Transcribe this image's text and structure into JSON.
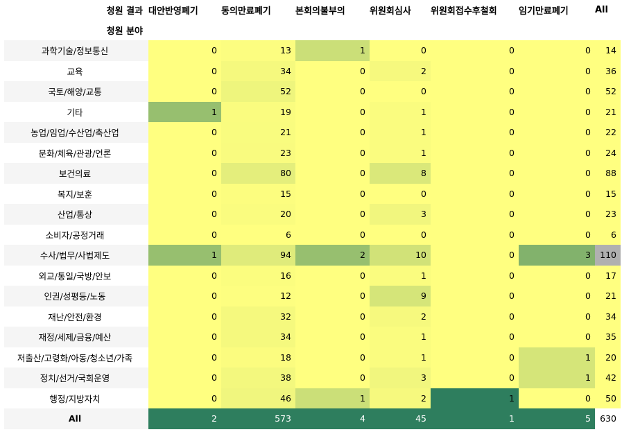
{
  "header": {
    "corner_row1": "청원 결과",
    "corner_row2": "청원 분야",
    "columns": [
      "대안반영폐기",
      "동의만료폐기",
      "본회의불부의",
      "위원회심사",
      "위원회접수후철회",
      "임기만료폐기",
      "All"
    ]
  },
  "rows": [
    {
      "label": "과학기술/정보통신",
      "values": [
        0,
        13,
        1,
        0,
        0,
        0,
        14
      ]
    },
    {
      "label": "교육",
      "values": [
        0,
        34,
        0,
        2,
        0,
        0,
        36
      ]
    },
    {
      "label": "국토/해양/교통",
      "values": [
        0,
        52,
        0,
        0,
        0,
        0,
        52
      ]
    },
    {
      "label": "기타",
      "values": [
        1,
        19,
        0,
        1,
        0,
        0,
        21
      ]
    },
    {
      "label": "농업/임업/수산업/축산업",
      "values": [
        0,
        21,
        0,
        1,
        0,
        0,
        22
      ]
    },
    {
      "label": "문화/체육/관광/언론",
      "values": [
        0,
        23,
        0,
        1,
        0,
        0,
        24
      ]
    },
    {
      "label": "보건의료",
      "values": [
        0,
        80,
        0,
        8,
        0,
        0,
        88
      ]
    },
    {
      "label": "복지/보훈",
      "values": [
        0,
        15,
        0,
        0,
        0,
        0,
        15
      ]
    },
    {
      "label": "산업/통상",
      "values": [
        0,
        20,
        0,
        3,
        0,
        0,
        23
      ]
    },
    {
      "label": "소비자/공정거래",
      "values": [
        0,
        6,
        0,
        0,
        0,
        0,
        6
      ]
    },
    {
      "label": "수사/법무/사법제도",
      "values": [
        1,
        94,
        2,
        10,
        0,
        3,
        110
      ]
    },
    {
      "label": "외교/통일/국방/안보",
      "values": [
        0,
        16,
        0,
        1,
        0,
        0,
        17
      ]
    },
    {
      "label": "인권/성평등/노동",
      "values": [
        0,
        12,
        0,
        9,
        0,
        0,
        21
      ]
    },
    {
      "label": "재난/안전/환경",
      "values": [
        0,
        32,
        0,
        2,
        0,
        0,
        34
      ]
    },
    {
      "label": "재정/세제/금융/예산",
      "values": [
        0,
        34,
        0,
        1,
        0,
        0,
        35
      ]
    },
    {
      "label": "저출산/고령화/아동/청소년/가족",
      "values": [
        0,
        18,
        0,
        1,
        0,
        1,
        20
      ]
    },
    {
      "label": "정치/선거/국회운영",
      "values": [
        0,
        38,
        0,
        3,
        0,
        1,
        42
      ]
    },
    {
      "label": "행정/지방자치",
      "values": [
        0,
        46,
        1,
        2,
        1,
        0,
        50
      ]
    }
  ],
  "total_row": {
    "label": "All",
    "values": [
      2,
      573,
      4,
      45,
      1,
      5,
      630
    ]
  },
  "colors": {
    "low": "#ffff80",
    "high": "#2e7e5e",
    "all_max_cell": "#b0b0b0"
  }
}
